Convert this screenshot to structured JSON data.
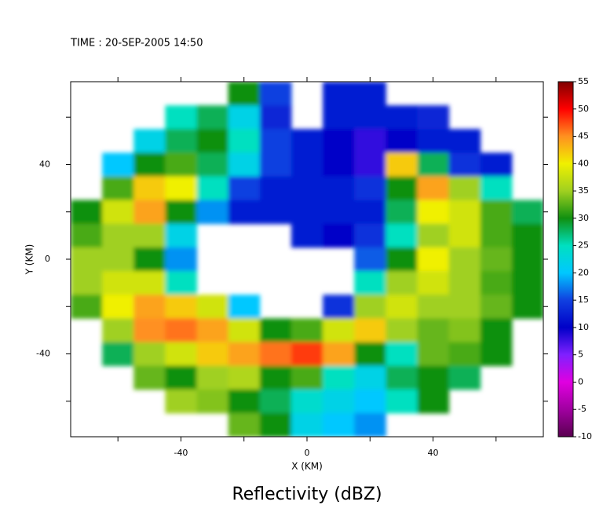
{
  "chart_data": {
    "type": "heatmap",
    "title": "Reflectivity (dBZ)",
    "subtitle": "TIME : 20-SEP-2005 14:50",
    "x_label": "X (KM)",
    "y_label": "Y (KM)",
    "xlim": [
      -75,
      75
    ],
    "ylim": [
      -75,
      75
    ],
    "xticks": [
      -40,
      0,
      40
    ],
    "yticks": [
      -40,
      0,
      40
    ],
    "xminor_ticks": [
      -60,
      -20,
      20,
      60
    ],
    "yminor_ticks": [
      -60,
      -20,
      20,
      60
    ],
    "clim": [
      -10,
      55
    ],
    "cticks": [
      -10,
      -5,
      0,
      5,
      10,
      15,
      20,
      25,
      30,
      35,
      40,
      45,
      50,
      55
    ],
    "colorscale": [
      "#5a0050",
      "#a000a0",
      "#e000e0",
      "#8020ff",
      "#0000c8",
      "#1040e0",
      "#00c8ff",
      "#00e0c0",
      "#109010",
      "#a0d020",
      "#f0f000",
      "#ff9020",
      "#ff0000",
      "#800000"
    ],
    "x": [
      -70,
      -60,
      -50,
      -40,
      -30,
      -20,
      -10,
      0,
      10,
      20,
      30,
      40,
      50,
      60,
      70
    ],
    "y": [
      70,
      60,
      50,
      40,
      30,
      20,
      10,
      0,
      -10,
      -20,
      -30,
      -40,
      -50,
      -60,
      -70
    ],
    "z": [
      [
        null,
        null,
        null,
        null,
        null,
        30,
        15,
        null,
        12,
        12,
        null,
        null,
        null,
        null,
        null
      ],
      [
        null,
        null,
        null,
        25,
        28,
        22,
        13,
        null,
        12,
        12,
        12,
        13,
        null,
        null,
        null
      ],
      [
        null,
        null,
        22,
        28,
        30,
        25,
        15,
        12,
        10,
        8,
        10,
        12,
        12,
        null,
        null
      ],
      [
        null,
        20,
        30,
        32,
        28,
        22,
        15,
        12,
        10,
        8,
        42,
        28,
        14,
        12,
        null
      ],
      [
        null,
        32,
        42,
        40,
        25,
        15,
        12,
        12,
        12,
        14,
        30,
        44,
        35,
        25,
        null
      ],
      [
        30,
        38,
        44,
        30,
        18,
        12,
        12,
        12,
        12,
        12,
        28,
        40,
        38,
        32,
        28
      ],
      [
        32,
        35,
        35,
        22,
        null,
        null,
        null,
        12,
        10,
        14,
        25,
        35,
        38,
        32,
        30
      ],
      [
        35,
        35,
        30,
        18,
        null,
        null,
        null,
        null,
        null,
        16,
        30,
        40,
        35,
        33,
        30
      ],
      [
        35,
        38,
        38,
        25,
        null,
        null,
        null,
        null,
        null,
        25,
        35,
        38,
        35,
        32,
        30
      ],
      [
        32,
        40,
        44,
        42,
        38,
        20,
        null,
        null,
        14,
        35,
        38,
        35,
        35,
        33,
        30
      ],
      [
        null,
        35,
        45,
        46,
        44,
        38,
        30,
        32,
        38,
        42,
        35,
        33,
        34,
        30,
        null
      ],
      [
        null,
        28,
        35,
        38,
        42,
        44,
        46,
        48,
        44,
        30,
        25,
        33,
        32,
        30,
        null
      ],
      [
        null,
        null,
        33,
        30,
        35,
        36,
        30,
        32,
        25,
        22,
        28,
        30,
        28,
        null,
        null
      ],
      [
        null,
        null,
        null,
        35,
        34,
        30,
        28,
        24,
        22,
        20,
        25,
        30,
        null,
        null,
        null
      ],
      [
        null,
        null,
        null,
        null,
        null,
        33,
        30,
        22,
        20,
        18,
        null,
        null,
        null,
        null,
        null
      ]
    ]
  }
}
